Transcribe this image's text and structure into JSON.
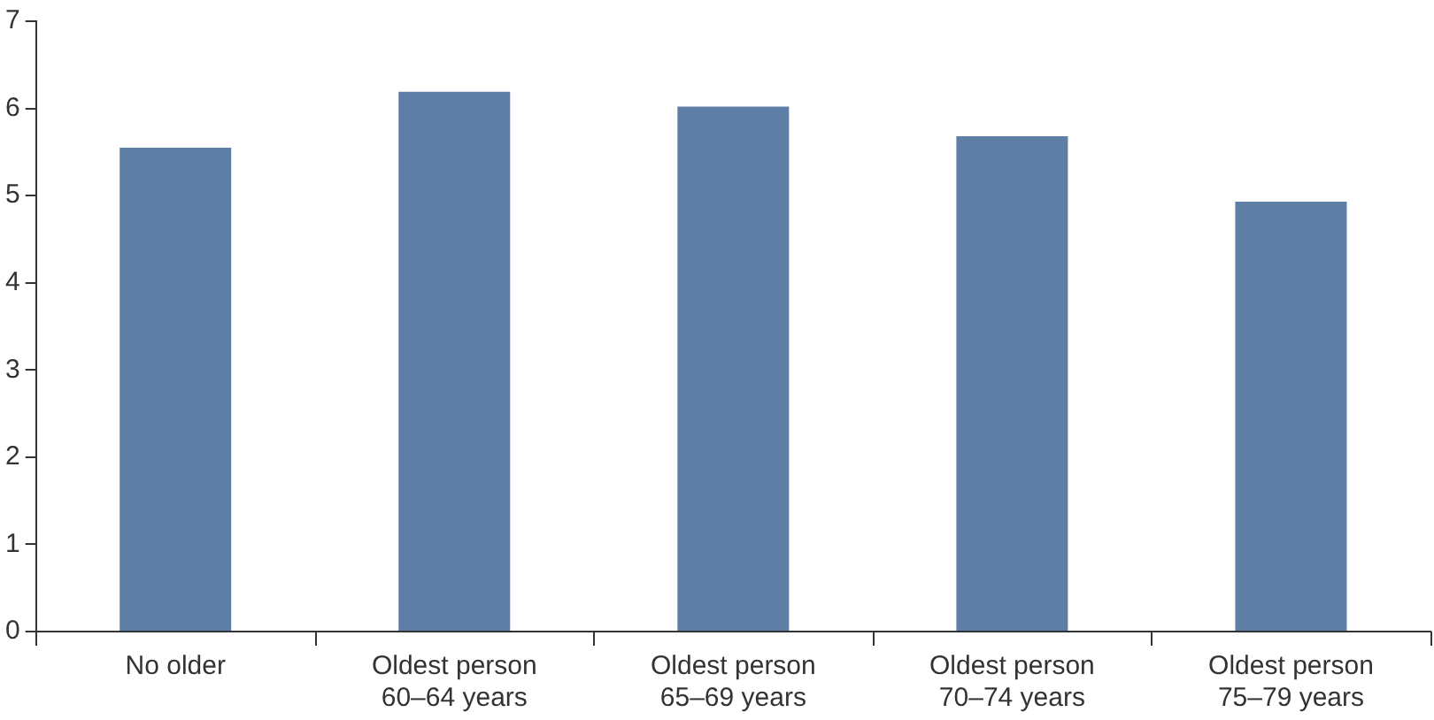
{
  "chart_data": {
    "type": "bar",
    "categories": [
      "No older",
      "Oldest person\n60–64 years",
      "Oldest person\n65–69 years",
      "Oldest person\n70–74 years",
      "Oldest person\n75–79 years"
    ],
    "values": [
      5.55,
      6.19,
      6.02,
      5.68,
      4.93
    ],
    "color": "#5f7ea6",
    "ylim": [
      0,
      7
    ],
    "yticks": [
      0,
      1,
      2,
      3,
      4,
      5,
      6,
      7
    ],
    "grid": false
  }
}
